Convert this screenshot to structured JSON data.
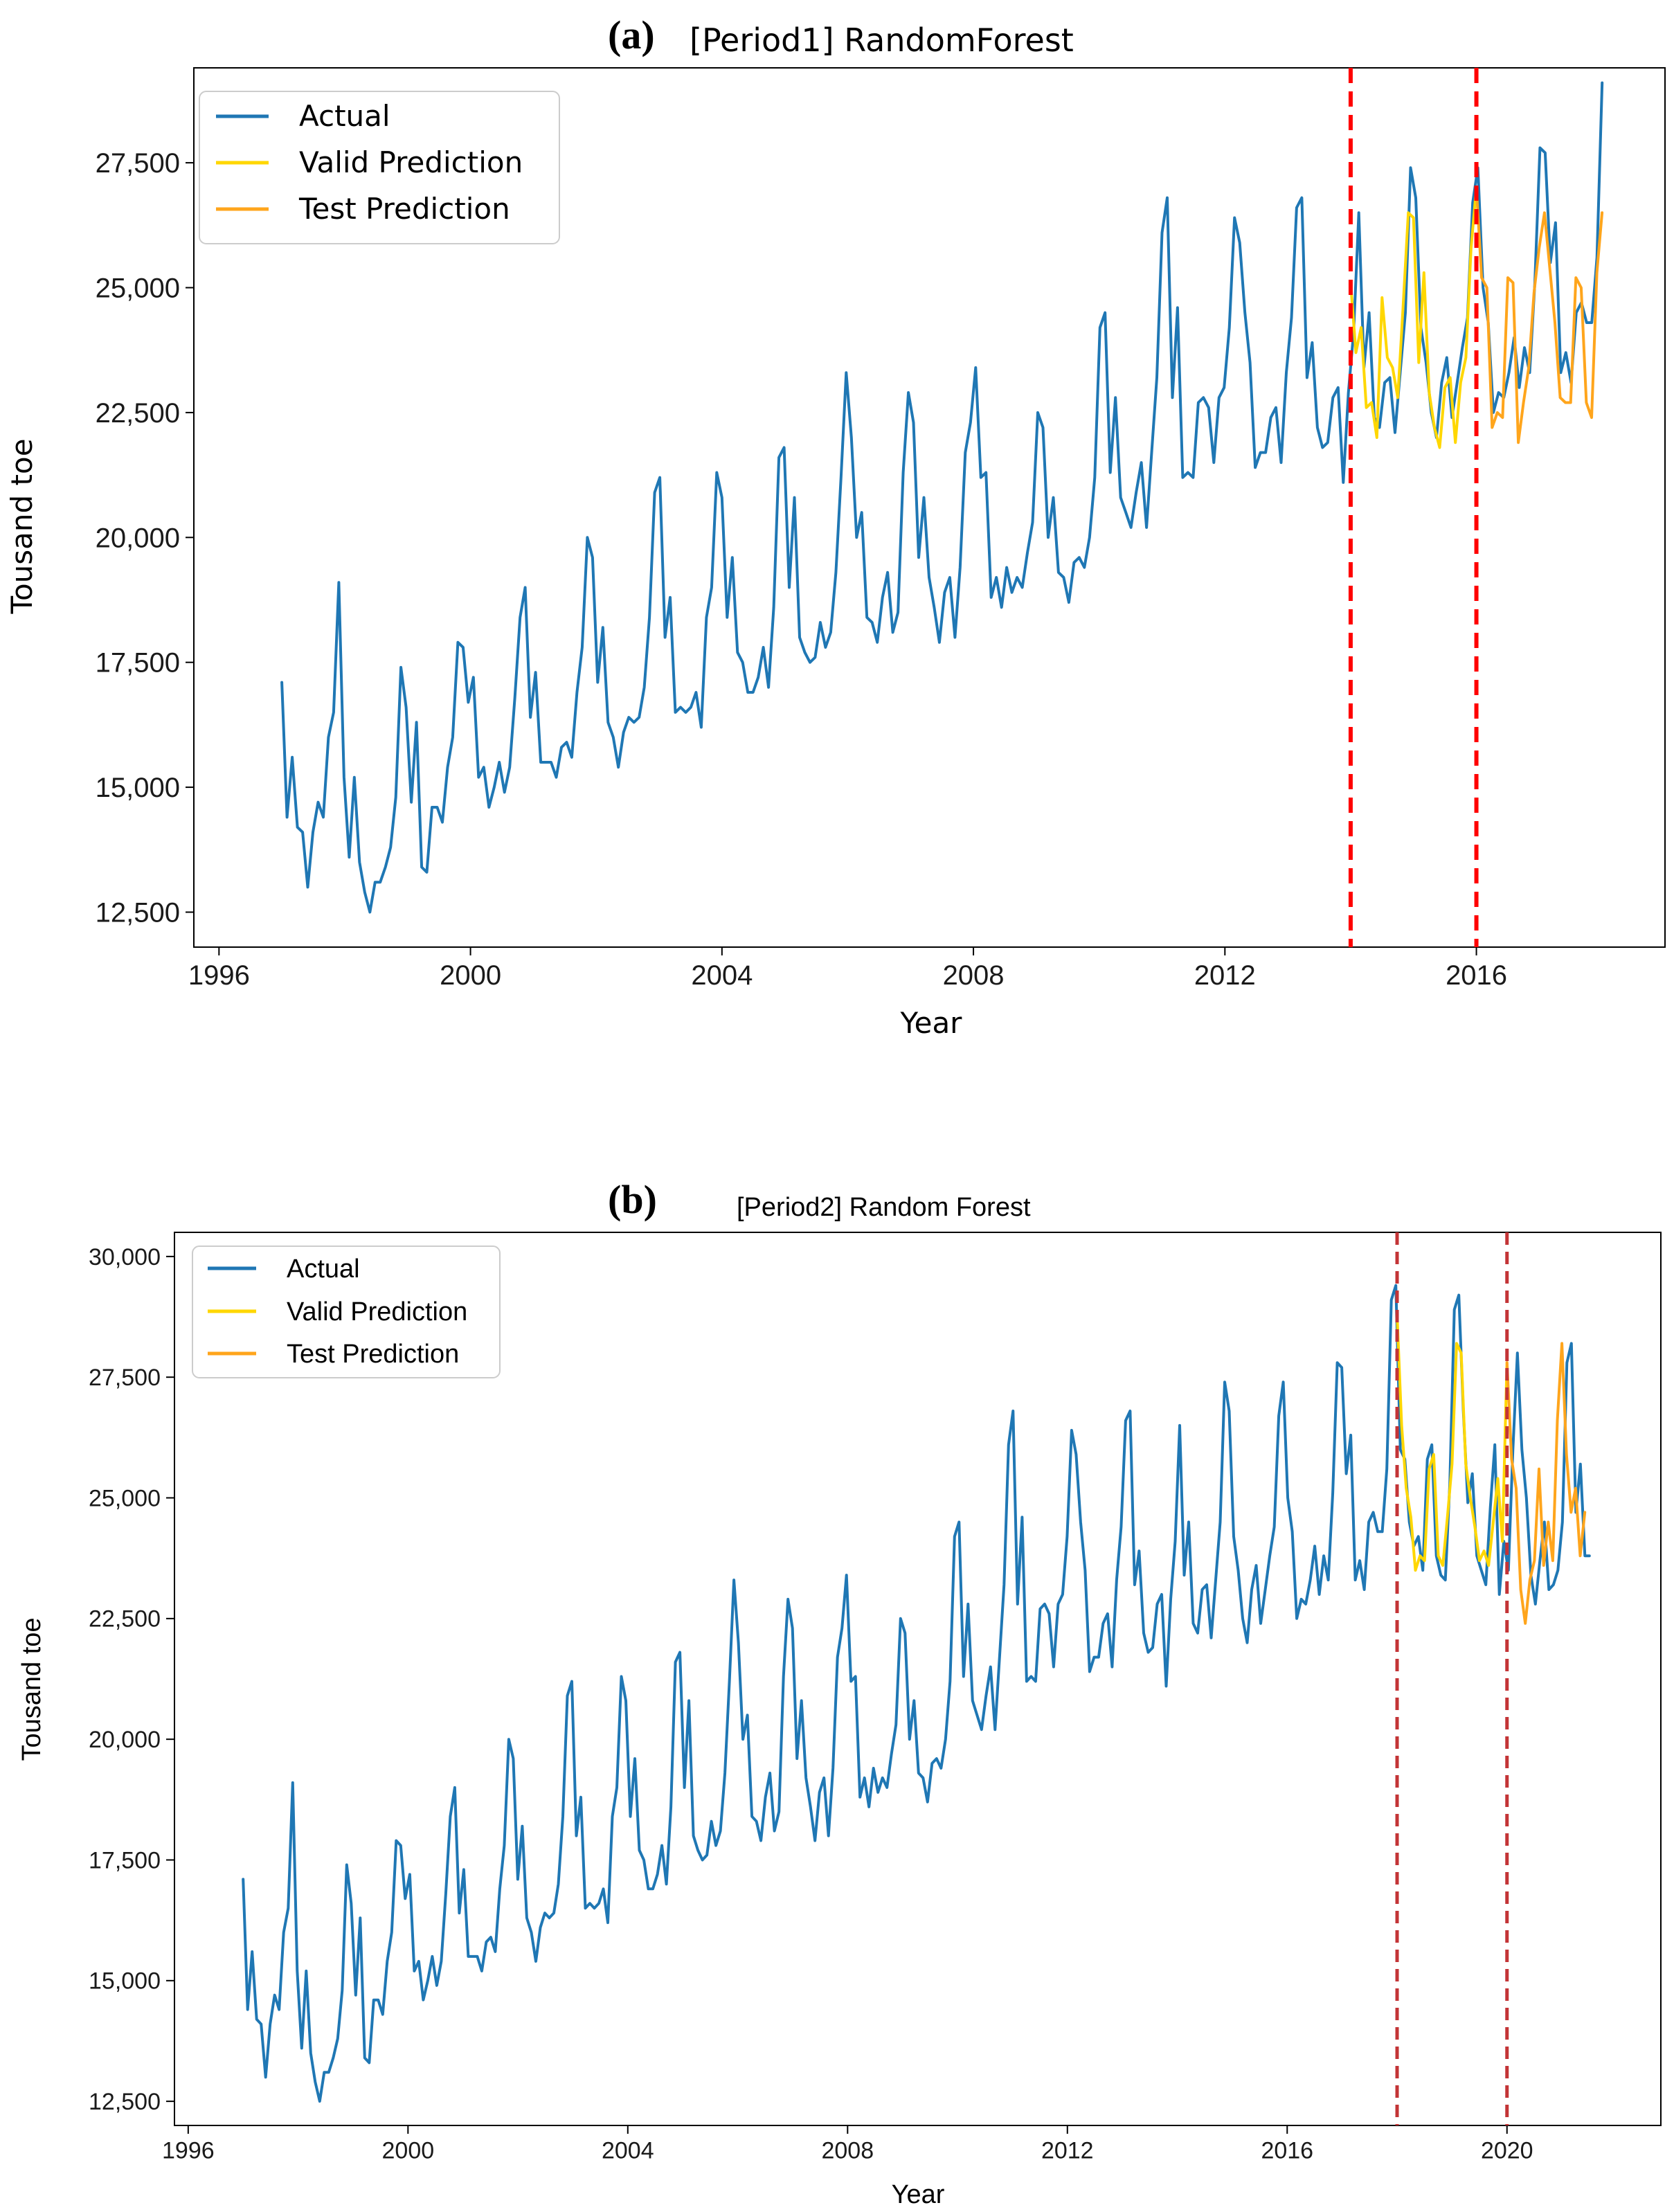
{
  "chart_data": [
    {
      "type": "line",
      "panel": "(a)",
      "title": "[Period1] RandomForest",
      "xlabel": "Year",
      "ylabel": "Tousand toe",
      "xlim": [
        1995.6,
        2019.0
      ],
      "ylim": [
        11800,
        29400
      ],
      "x_ticks": [
        1996,
        2000,
        2004,
        2008,
        2012,
        2016
      ],
      "x_tick_labels": [
        "1996",
        "2000",
        "2004",
        "2008",
        "2012",
        "2016"
      ],
      "y_ticks": [
        12500,
        15000,
        17500,
        20000,
        22500,
        25000,
        27500
      ],
      "y_tick_labels": [
        "12,500",
        "15,000",
        "17,500",
        "20,000",
        "22,500",
        "25,000",
        "27,500"
      ],
      "split_lines": [
        2014.0,
        2016.0
      ],
      "legend": [
        "Actual",
        "Valid Prediction",
        "Test Prediction"
      ],
      "series": [
        {
          "name": "Actual",
          "color": "#1f77b4",
          "x_start": 1997.0,
          "x_step": 0.0833,
          "x_end": 2018.0,
          "values": [
            17100,
            14400,
            15600,
            14200,
            14100,
            13000,
            14100,
            14700,
            14400,
            16000,
            16500,
            19100,
            15200,
            13600,
            15200,
            13500,
            12900,
            12500,
            13100,
            13100,
            13400,
            13800,
            14800,
            17400,
            16600,
            14700,
            16300,
            13400,
            13300,
            14600,
            14600,
            14300,
            15400,
            16000,
            17900,
            17800,
            16700,
            17200,
            15200,
            15400,
            14600,
            15000,
            15500,
            14900,
            15400,
            16800,
            18400,
            19000,
            16400,
            17300,
            15500,
            15500,
            15500,
            15200,
            15800,
            15900,
            15600,
            16900,
            17800,
            20000,
            19600,
            17100,
            18200,
            16300,
            16000,
            15400,
            16100,
            16400,
            16300,
            16400,
            17000,
            18400,
            20900,
            21200,
            18000,
            18800,
            16500,
            16600,
            16500,
            16600,
            16900,
            16200,
            18400,
            19000,
            21300,
            20800,
            18400,
            19600,
            17700,
            17500,
            16900,
            16900,
            17200,
            17800,
            17000,
            18600,
            21600,
            21800,
            19000,
            20800,
            18000,
            17700,
            17500,
            17600,
            18300,
            17800,
            18100,
            19300,
            21200,
            23300,
            22000,
            20000,
            20500,
            18400,
            18300,
            17900,
            18800,
            19300,
            18100,
            18500,
            21300,
            22900,
            22300,
            19600,
            20800,
            19200,
            18600,
            17900,
            18900,
            19200,
            18000,
            19400,
            21700,
            22300,
            23400,
            21200,
            21300,
            18800,
            19200,
            18600,
            19400,
            18900,
            19200,
            19000,
            19700,
            20300,
            22500,
            22200,
            20000,
            20800,
            19300,
            19200,
            18700,
            19500,
            19600,
            19400,
            20000,
            21200,
            24200,
            24500,
            21300,
            22800,
            20800,
            20500,
            20200,
            20900,
            21500,
            20200,
            21700,
            23200,
            26100,
            26800,
            22800,
            24600,
            21200,
            21300,
            21200,
            22700,
            22800,
            22600,
            21500,
            22800,
            23000,
            24200,
            26400,
            25900,
            24500,
            23500,
            21400,
            21700,
            21700,
            22400,
            22600,
            21500,
            23300,
            24400,
            26600,
            26800,
            23200,
            23900,
            22200,
            21800,
            21900,
            22800,
            23000,
            21100,
            22900,
            24100,
            26500,
            23400,
            24500,
            22400,
            22200,
            23100,
            23200,
            22100,
            23300,
            24500,
            27400,
            26800,
            24200,
            23500,
            22500,
            22000,
            23100,
            23600,
            22400,
            23100,
            23800,
            24400,
            26700,
            27400,
            25000,
            24300,
            22500,
            22900,
            22800,
            23300,
            24000,
            23000,
            23800,
            23300,
            25100,
            27800,
            27700,
            25500,
            26300,
            23300,
            23700,
            23100,
            24500,
            24700,
            24300,
            24300,
            25600,
            29100
          ]
        },
        {
          "name": "Valid Prediction",
          "color": "#ffd700",
          "x_start": 2014.0,
          "x_step": 0.0833,
          "values": [
            25100,
            23700,
            24200,
            22600,
            22700,
            22000,
            24800,
            23600,
            23400,
            22800,
            24600,
            26500,
            26400,
            23500,
            25300,
            22900,
            22200,
            21800,
            23000,
            23200,
            21900,
            23100,
            23600,
            25800,
            27000
          ]
        },
        {
          "name": "Test Prediction",
          "color": "#ffa51c",
          "x_start": 2016.0,
          "x_step": 0.0833,
          "values": [
            27000,
            25200,
            25000,
            22200,
            22500,
            22400,
            25200,
            25100,
            21900,
            22700,
            23400,
            24900,
            25800,
            26500,
            25400,
            24300,
            22800,
            22700,
            22700,
            25200,
            25000,
            22700,
            22400,
            25300,
            26500
          ]
        }
      ]
    },
    {
      "type": "line",
      "panel": "(b)",
      "title": "[Period2] Random Forest",
      "xlabel": "Year",
      "ylabel": "Tousand toe",
      "xlim": [
        1995.75,
        2022.8
      ],
      "ylim": [
        12000,
        30500
      ],
      "x_ticks": [
        1996,
        2000,
        2004,
        2008,
        2012,
        2016,
        2020
      ],
      "x_tick_labels": [
        "1996",
        "2000",
        "2004",
        "2008",
        "2012",
        "2016",
        "2020"
      ],
      "y_ticks": [
        12500,
        15000,
        17500,
        20000,
        22500,
        25000,
        27500,
        30000
      ],
      "y_tick_labels": [
        "12,500",
        "15,000",
        "17,500",
        "20,000",
        "22,500",
        "25,000",
        "27,500",
        "30,000"
      ],
      "split_lines": [
        2018.0,
        2020.0
      ],
      "legend": [
        "Actual",
        "Valid Prediction",
        "Test Prediction"
      ],
      "series": [
        {
          "name": "Actual",
          "color": "#1f77b4",
          "x_start": 1997.0,
          "x_step": 0.0833,
          "x_end": 2021.5,
          "values": [
            17100,
            14400,
            15600,
            14200,
            14100,
            13000,
            14100,
            14700,
            14400,
            16000,
            16500,
            19100,
            15200,
            13600,
            15200,
            13500,
            12900,
            12500,
            13100,
            13100,
            13400,
            13800,
            14800,
            17400,
            16600,
            14700,
            16300,
            13400,
            13300,
            14600,
            14600,
            14300,
            15400,
            16000,
            17900,
            17800,
            16700,
            17200,
            15200,
            15400,
            14600,
            15000,
            15500,
            14900,
            15400,
            16800,
            18400,
            19000,
            16400,
            17300,
            15500,
            15500,
            15500,
            15200,
            15800,
            15900,
            15600,
            16900,
            17800,
            20000,
            19600,
            17100,
            18200,
            16300,
            16000,
            15400,
            16100,
            16400,
            16300,
            16400,
            17000,
            18400,
            20900,
            21200,
            18000,
            18800,
            16500,
            16600,
            16500,
            16600,
            16900,
            16200,
            18400,
            19000,
            21300,
            20800,
            18400,
            19600,
            17700,
            17500,
            16900,
            16900,
            17200,
            17800,
            17000,
            18600,
            21600,
            21800,
            19000,
            20800,
            18000,
            17700,
            17500,
            17600,
            18300,
            17800,
            18100,
            19300,
            21200,
            23300,
            22000,
            20000,
            20500,
            18400,
            18300,
            17900,
            18800,
            19300,
            18100,
            18500,
            21300,
            22900,
            22300,
            19600,
            20800,
            19200,
            18600,
            17900,
            18900,
            19200,
            18000,
            19400,
            21700,
            22300,
            23400,
            21200,
            21300,
            18800,
            19200,
            18600,
            19400,
            18900,
            19200,
            19000,
            19700,
            20300,
            22500,
            22200,
            20000,
            20800,
            19300,
            19200,
            18700,
            19500,
            19600,
            19400,
            20000,
            21200,
            24200,
            24500,
            21300,
            22800,
            20800,
            20500,
            20200,
            20900,
            21500,
            20200,
            21700,
            23200,
            26100,
            26800,
            22800,
            24600,
            21200,
            21300,
            21200,
            22700,
            22800,
            22600,
            21500,
            22800,
            23000,
            24200,
            26400,
            25900,
            24500,
            23500,
            21400,
            21700,
            21700,
            22400,
            22600,
            21500,
            23300,
            24400,
            26600,
            26800,
            23200,
            23900,
            22200,
            21800,
            21900,
            22800,
            23000,
            21100,
            22900,
            24100,
            26500,
            23400,
            24500,
            22400,
            22200,
            23100,
            23200,
            22100,
            23300,
            24500,
            27400,
            26800,
            24200,
            23500,
            22500,
            22000,
            23100,
            23600,
            22400,
            23100,
            23800,
            24400,
            26700,
            27400,
            25000,
            24300,
            22500,
            22900,
            22800,
            23300,
            24000,
            23000,
            23800,
            23300,
            25100,
            27800,
            27700,
            25500,
            26300,
            23300,
            23700,
            23100,
            24500,
            24700,
            24300,
            24300,
            25600,
            29100,
            29400,
            26000,
            25800,
            24500,
            24000,
            24200,
            23500,
            25800,
            26100,
            23800,
            23400,
            23300,
            25300,
            28900,
            29200,
            26800,
            24900,
            25500,
            23800,
            23500,
            23200,
            24800,
            26100,
            23000,
            24100,
            23500,
            26000,
            28000,
            26000,
            25000,
            23400,
            22800,
            23700,
            24500,
            23100,
            23200,
            23500,
            24500,
            27800,
            28200,
            24700,
            25700,
            23800,
            23800
          ]
        },
        {
          "name": "Valid Prediction",
          "color": "#ffd700",
          "x_start": 2018.0,
          "x_step": 0.0833,
          "values": [
            28800,
            26500,
            25200,
            24600,
            23500,
            23800,
            23700,
            25600,
            25900,
            23800,
            23600,
            24600,
            25700,
            28200,
            28000,
            25700,
            25000,
            24400,
            23700,
            23900,
            23600,
            24500,
            25400,
            24100,
            27800
          ]
        },
        {
          "name": "Test Prediction",
          "color": "#ffa51c",
          "x_start": 2020.0,
          "x_step": 0.0833,
          "values": [
            27800,
            25800,
            25200,
            23100,
            22400,
            23300,
            23700,
            25600,
            23600,
            24500,
            23700,
            26600,
            28200,
            25900,
            24700,
            25200,
            23800,
            24700
          ]
        }
      ]
    }
  ],
  "colors": {
    "split_line_a": "#ff0000",
    "split_line_b": "#c33436"
  }
}
